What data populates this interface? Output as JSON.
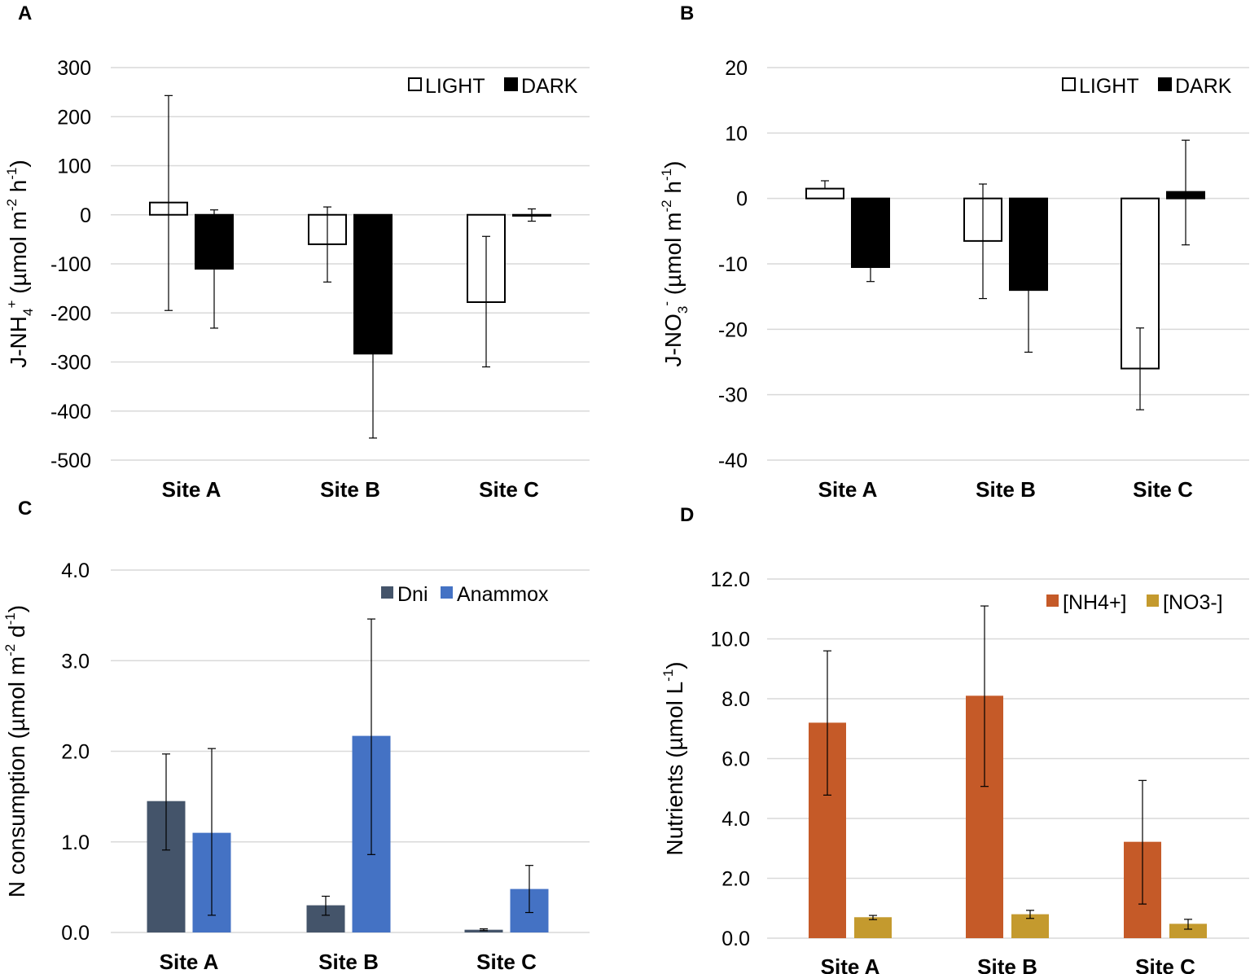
{
  "chart_data": [
    {
      "panel": "A",
      "type": "bar",
      "categories": [
        "Site A",
        "Site B",
        "Site C"
      ],
      "ylabel": {
        "base": "J-NH",
        "sub": "4",
        "sup": "+",
        "unit_prefix": " (µmol m",
        "unit_sup1": "-2",
        "unit_mid": " h",
        "unit_sup2": "-1",
        "unit_suffix": ")"
      },
      "ylim": [
        -500,
        300
      ],
      "yticks": [
        300,
        200,
        100,
        0,
        -100,
        -200,
        -300,
        -400,
        -500
      ],
      "tick_labels": [
        "300",
        "200",
        "100",
        "0",
        "-100",
        "-200",
        "-300",
        "-400",
        "-500"
      ],
      "series": [
        {
          "name": "LIGHT",
          "fill": "#ffffff",
          "stroke": "#000000",
          "values": [
            25,
            -60,
            -178
          ],
          "err_low": [
            -195,
            -137,
            -310
          ],
          "err_high": [
            243,
            16,
            -44
          ]
        },
        {
          "name": "DARK",
          "fill": "#000000",
          "stroke": "#000000",
          "values": [
            -110,
            -283,
            -2
          ],
          "err_low": [
            -231,
            -455,
            -13
          ],
          "err_high": [
            10,
            -283,
            12
          ]
        }
      ],
      "legend": "top-right",
      "grid": true
    },
    {
      "panel": "B",
      "type": "bar",
      "categories": [
        "Site A",
        "Site B",
        "Site C"
      ],
      "ylabel": {
        "base": "J-NO",
        "sub": "3",
        "sup": "-",
        "unit_prefix": " (µmol m",
        "unit_sup1": "-2",
        "unit_mid": " h",
        "unit_sup2": "-1",
        "unit_suffix": ")"
      },
      "ylim": [
        -40,
        20
      ],
      "yticks": [
        20,
        10,
        0,
        -10,
        -20,
        -30,
        -40
      ],
      "tick_labels": [
        "20",
        "10",
        "0",
        "-10",
        "-20",
        "-30",
        "-40"
      ],
      "series": [
        {
          "name": "LIGHT",
          "fill": "#ffffff",
          "stroke": "#000000",
          "values": [
            1.5,
            -6.5,
            -26
          ],
          "err_low": [
            1.5,
            -15.3,
            -32.3
          ],
          "err_high": [
            2.7,
            2.2,
            -19.8
          ]
        },
        {
          "name": "DARK",
          "fill": "#000000",
          "stroke": "#000000",
          "values": [
            -10.5,
            -14,
            1
          ],
          "err_low": [
            -12.7,
            -23.5,
            -7.1
          ],
          "err_high": [
            -10.5,
            -14,
            8.9
          ]
        }
      ],
      "legend": "top-right",
      "grid": true
    },
    {
      "panel": "C",
      "type": "bar",
      "categories": [
        "Site A",
        "Site B",
        "Site C"
      ],
      "ylabel": {
        "base": "N consumption",
        "sub": "",
        "sup": "",
        "unit_prefix": " (µmol m",
        "unit_sup1": "-2",
        "unit_mid": " d",
        "unit_sup2": "-1",
        "unit_suffix": ")"
      },
      "ylim": [
        0,
        4
      ],
      "yticks": [
        4,
        3,
        2,
        1,
        0
      ],
      "tick_labels": [
        "4.0",
        "3.0",
        "2.0",
        "1.0",
        "0.0"
      ],
      "series": [
        {
          "name": "Dni",
          "fill": "#44546a",
          "stroke": "none",
          "values": [
            1.45,
            0.3,
            0.03
          ],
          "err_low": [
            0.91,
            0.19,
            0.02
          ],
          "err_high": [
            1.97,
            0.4,
            0.04
          ]
        },
        {
          "name": "Anammox",
          "fill": "#4472c4",
          "stroke": "none",
          "values": [
            1.1,
            2.17,
            0.48
          ],
          "err_low": [
            0.19,
            0.86,
            0.22
          ],
          "err_high": [
            2.03,
            3.46,
            0.74
          ]
        }
      ],
      "legend": "top-right",
      "grid": true
    },
    {
      "panel": "D",
      "type": "bar",
      "categories": [
        "Site A",
        "Site B",
        "Site C"
      ],
      "ylabel": {
        "base": "Nutrients",
        "sub": "",
        "sup": "",
        "unit_prefix": " (µmol L",
        "unit_sup1": "-1",
        "unit_mid": "",
        "unit_sup2": "",
        "unit_suffix": ")"
      },
      "ylim": [
        0,
        12
      ],
      "yticks": [
        12,
        10,
        8,
        6,
        4,
        2,
        0
      ],
      "tick_labels": [
        "12.0",
        "10.0",
        "8.0",
        "6.0",
        "4.0",
        "2.0",
        "0.0"
      ],
      "series": [
        {
          "name": "[NH4+]",
          "fill": "#c55a28",
          "stroke": "none",
          "values": [
            7.2,
            8.1,
            3.22
          ],
          "err_low": [
            4.78,
            5.07,
            1.14
          ],
          "err_high": [
            9.6,
            11.1,
            5.27
          ]
        },
        {
          "name": "[NO3-]",
          "fill": "#c49a2e",
          "stroke": "none",
          "values": [
            0.7,
            0.8,
            0.48
          ],
          "err_low": [
            0.62,
            0.66,
            0.3
          ],
          "err_high": [
            0.76,
            0.93,
            0.63
          ]
        }
      ],
      "legend": "top-right",
      "grid": true
    }
  ]
}
